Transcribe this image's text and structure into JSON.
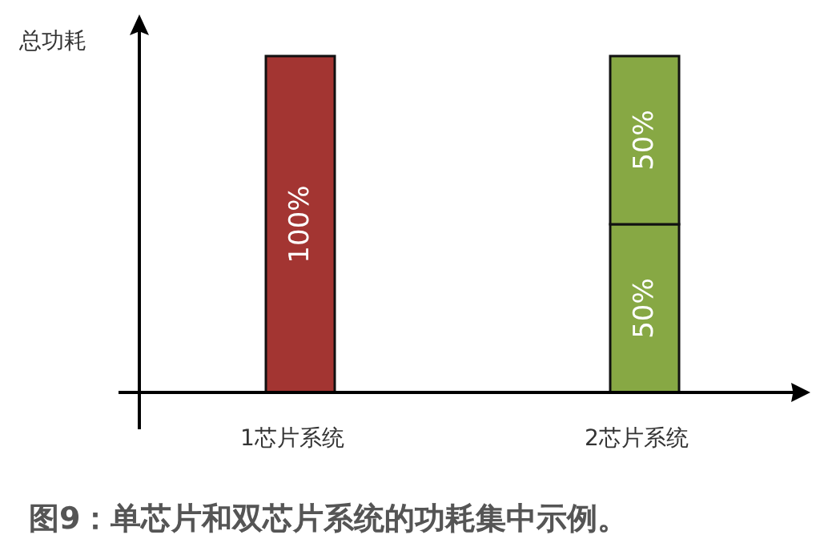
{
  "chart_data": {
    "type": "bar",
    "stacked": true,
    "title": "图9：单芯片和双芯片系统的功耗集中示例。",
    "ylabel": "总功耗",
    "categories": [
      "1芯片系统",
      "2芯片系统"
    ],
    "series": [
      {
        "colors": [
          "#a33532",
          "#87a844"
        ],
        "values": [
          100,
          50
        ],
        "value_labels": [
          "100%",
          "50%"
        ]
      },
      {
        "color": "#87a844",
        "values": [
          null,
          50
        ],
        "value_labels": [
          null,
          "50%"
        ]
      }
    ]
  }
}
